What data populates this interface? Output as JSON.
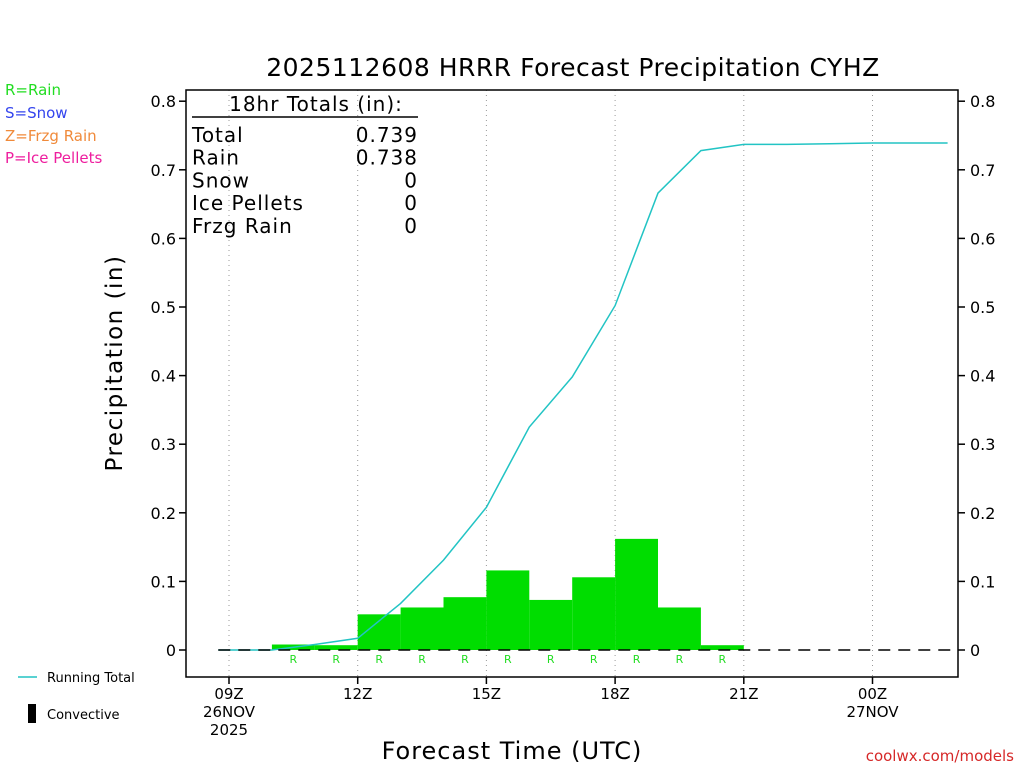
{
  "title": "2025112608 HRRR Forecast Precipitation CYHZ",
  "xlabel": "Forecast Time (UTC)",
  "ylabel": "Precipitation (in)",
  "credit": "coolwx.com/models",
  "legend_types": [
    {
      "label": "R=Rain",
      "color": "#22dd22"
    },
    {
      "label": "S=Snow",
      "color": "#3344ee"
    },
    {
      "label": "Z=Frzg Rain",
      "color": "#f08a3a"
    },
    {
      "label": "P=Ice Pellets",
      "color": "#ee1e9e"
    }
  ],
  "legend_bottom": {
    "running_total": "Running Total",
    "convective": "Convective"
  },
  "totals": {
    "header": "18hr Totals (in):",
    "rows": [
      {
        "label": "Total",
        "value": "0.739"
      },
      {
        "label": "Rain",
        "value": "0.738"
      },
      {
        "label": "Snow",
        "value": "0"
      },
      {
        "label": "Ice Pellets",
        "value": "0"
      },
      {
        "label": "Frzg Rain",
        "value": "0"
      }
    ]
  },
  "colors": {
    "bar": "#00dd00",
    "line": "#22c4c4",
    "rain_marker": "#22dd22"
  },
  "chart_data": {
    "type": "bar",
    "x_unit": "forecast hour relative to 09Z 26NOV 2025",
    "ylim": [
      0,
      0.8
    ],
    "xlim": [
      -1,
      17
    ],
    "yticks": [
      0,
      0.1,
      0.2,
      0.3,
      0.4,
      0.5,
      0.6,
      0.7,
      0.8
    ],
    "ytick_labels": [
      "0",
      "0.1",
      "0.2",
      "0.3",
      "0.4",
      "0.5",
      "0.6",
      "0.7",
      "0.8"
    ],
    "xticks": [
      {
        "x": 0,
        "lines": [
          "09Z",
          "26NOV",
          "2025"
        ]
      },
      {
        "x": 3,
        "lines": [
          "12Z"
        ]
      },
      {
        "x": 6,
        "lines": [
          "15Z"
        ]
      },
      {
        "x": 9,
        "lines": [
          "18Z"
        ]
      },
      {
        "x": 12,
        "lines": [
          "21Z"
        ]
      },
      {
        "x": 15,
        "lines": [
          "00Z",
          "27NOV"
        ]
      }
    ],
    "grid_x": [
      0,
      3,
      6,
      9,
      12,
      15
    ],
    "bars": [
      {
        "x": 2,
        "value": 0.008,
        "type": "R"
      },
      {
        "x": 3,
        "value": 0.007,
        "type": "R"
      },
      {
        "x": 4,
        "value": 0.052,
        "type": "R"
      },
      {
        "x": 5,
        "value": 0.062,
        "type": "R"
      },
      {
        "x": 6,
        "value": 0.077,
        "type": "R"
      },
      {
        "x": 7,
        "value": 0.116,
        "type": "R"
      },
      {
        "x": 8,
        "value": 0.073,
        "type": "R"
      },
      {
        "x": 9,
        "value": 0.106,
        "type": "R"
      },
      {
        "x": 10,
        "value": 0.162,
        "type": "R"
      },
      {
        "x": 11,
        "value": 0.062,
        "type": "R"
      },
      {
        "x": 12,
        "value": 0.007,
        "type": "R"
      }
    ],
    "running_total": {
      "x": [
        -0.25,
        1,
        2,
        3,
        4,
        5,
        6,
        7,
        8,
        9,
        10,
        11,
        12,
        13,
        14,
        15,
        16,
        16.75
      ],
      "y": [
        0,
        0,
        0.008,
        0.017,
        0.068,
        0.131,
        0.208,
        0.325,
        0.398,
        0.502,
        0.666,
        0.728,
        0.737,
        0.737,
        0.738,
        0.739,
        0.739,
        0.739
      ]
    }
  }
}
